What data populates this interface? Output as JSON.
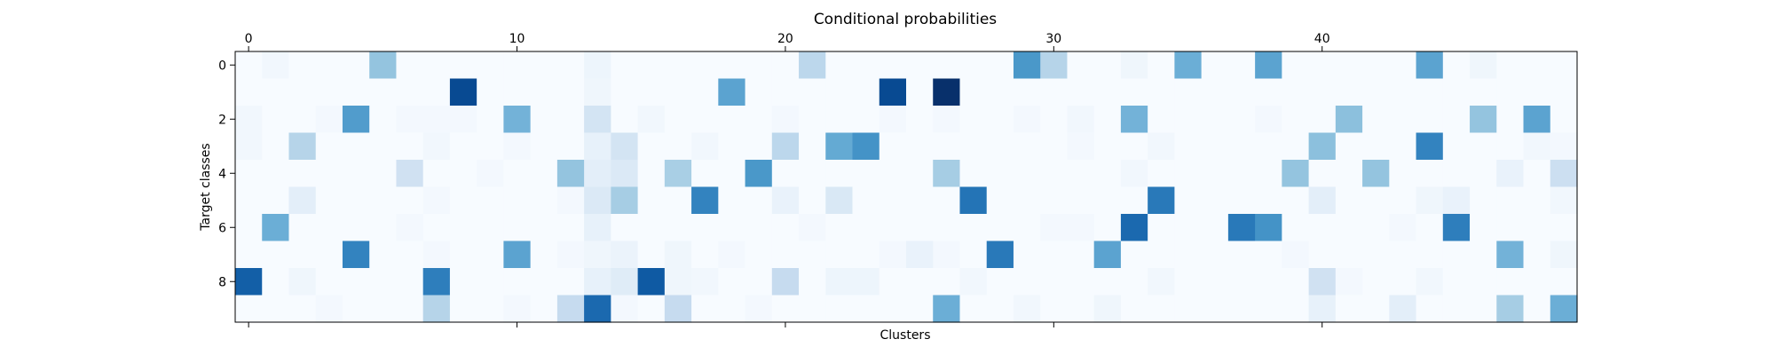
{
  "chart_data": {
    "type": "heatmap",
    "title": "Conditional probabilities",
    "xlabel": "Clusters",
    "ylabel": "Target classes",
    "colormap": "Blues",
    "low_color": "#f7fbff",
    "high_color": "#08306b",
    "x_tick_position": "top",
    "n_clusters": 50,
    "n_classes": 10,
    "x_ticks": [
      0,
      10,
      20,
      30,
      40
    ],
    "y_ticks": [
      0,
      2,
      4,
      6,
      8
    ],
    "value_range": [
      0,
      1
    ],
    "grid": false,
    "matrix": [
      [
        0.0,
        0.03,
        0.0,
        0.0,
        0.0,
        0.4,
        0.0,
        0.0,
        0.0,
        0.0,
        0.0,
        0.0,
        0.0,
        0.05,
        0.0,
        0.0,
        0.0,
        0.0,
        0.0,
        0.0,
        0.0,
        0.28,
        0.0,
        0.0,
        0.0,
        0.0,
        0.0,
        0.0,
        0.0,
        0.6,
        0.3,
        0.0,
        0.0,
        0.04,
        0.0,
        0.5,
        0.0,
        0.0,
        0.55,
        0.0,
        0.0,
        0.0,
        0.0,
        0.0,
        0.55,
        0.0,
        0.04,
        0.0,
        0.0,
        0.0
      ],
      [
        0.0,
        0.0,
        0.0,
        0.0,
        0.0,
        0.0,
        0.0,
        0.0,
        0.9,
        0.0,
        0.0,
        0.0,
        0.0,
        0.04,
        0.0,
        0.0,
        0.0,
        0.0,
        0.55,
        0.0,
        0.0,
        0.0,
        0.0,
        0.0,
        0.9,
        0.0,
        1.0,
        0.0,
        0.0,
        0.0,
        0.0,
        0.0,
        0.0,
        0.0,
        0.0,
        0.0,
        0.0,
        0.0,
        0.0,
        0.0,
        0.0,
        0.0,
        0.0,
        0.0,
        0.0,
        0.0,
        0.0,
        0.0,
        0.0,
        0.0
      ],
      [
        0.03,
        0.0,
        0.0,
        0.02,
        0.58,
        0.0,
        0.02,
        0.02,
        0.02,
        0.0,
        0.48,
        0.0,
        0.0,
        0.18,
        0.0,
        0.03,
        0.0,
        0.0,
        0.0,
        0.0,
        0.02,
        0.0,
        0.0,
        0.0,
        0.02,
        0.0,
        0.02,
        0.0,
        0.0,
        0.02,
        0.0,
        0.03,
        0.0,
        0.48,
        0.0,
        0.0,
        0.0,
        0.0,
        0.02,
        0.0,
        0.0,
        0.42,
        0.0,
        0.0,
        0.0,
        0.0,
        0.4,
        0.0,
        0.55,
        0.0
      ],
      [
        0.03,
        0.0,
        0.3,
        0.0,
        0.0,
        0.0,
        0.0,
        0.03,
        0.0,
        0.0,
        0.02,
        0.0,
        0.0,
        0.08,
        0.18,
        0.0,
        0.0,
        0.03,
        0.0,
        0.0,
        0.28,
        0.0,
        0.52,
        0.62,
        0.0,
        0.0,
        0.0,
        0.0,
        0.0,
        0.0,
        0.0,
        0.02,
        0.0,
        0.0,
        0.03,
        0.0,
        0.0,
        0.0,
        0.0,
        0.0,
        0.42,
        0.0,
        0.0,
        0.0,
        0.68,
        0.0,
        0.0,
        0.0,
        0.03,
        0.02
      ],
      [
        0.0,
        0.0,
        0.0,
        0.0,
        0.0,
        0.0,
        0.2,
        0.0,
        0.0,
        0.02,
        0.0,
        0.0,
        0.4,
        0.1,
        0.14,
        0.0,
        0.34,
        0.0,
        0.0,
        0.6,
        0.0,
        0.0,
        0.0,
        0.0,
        0.0,
        0.0,
        0.35,
        0.0,
        0.0,
        0.0,
        0.0,
        0.0,
        0.0,
        0.03,
        0.0,
        0.0,
        0.0,
        0.0,
        0.0,
        0.4,
        0.0,
        0.0,
        0.4,
        0.0,
        0.0,
        0.0,
        0.0,
        0.07,
        0.0,
        0.22
      ],
      [
        0.0,
        0.0,
        0.1,
        0.0,
        0.0,
        0.0,
        0.0,
        0.02,
        0.0,
        0.0,
        0.0,
        0.0,
        0.02,
        0.14,
        0.35,
        0.0,
        0.0,
        0.68,
        0.0,
        0.0,
        0.07,
        0.0,
        0.15,
        0.0,
        0.0,
        0.0,
        0.0,
        0.74,
        0.0,
        0.0,
        0.0,
        0.0,
        0.0,
        0.0,
        0.72,
        0.0,
        0.0,
        0.0,
        0.0,
        0.0,
        0.1,
        0.0,
        0.0,
        0.0,
        0.04,
        0.07,
        0.0,
        0.0,
        0.0,
        0.03
      ],
      [
        0.0,
        0.5,
        0.0,
        0.0,
        0.0,
        0.0,
        0.02,
        0.0,
        0.0,
        0.0,
        0.0,
        0.0,
        0.0,
        0.08,
        0.0,
        0.0,
        0.0,
        0.0,
        0.0,
        0.0,
        0.0,
        0.02,
        0.0,
        0.0,
        0.0,
        0.0,
        0.0,
        0.0,
        0.0,
        0.0,
        0.02,
        0.02,
        0.0,
        0.78,
        0.0,
        0.0,
        0.0,
        0.72,
        0.62,
        0.0,
        0.0,
        0.0,
        0.0,
        0.02,
        0.0,
        0.7,
        0.0,
        0.0,
        0.0,
        0.0
      ],
      [
        0.0,
        0.0,
        0.0,
        0.0,
        0.68,
        0.0,
        0.0,
        0.02,
        0.0,
        0.0,
        0.55,
        0.0,
        0.02,
        0.04,
        0.06,
        0.0,
        0.04,
        0.0,
        0.02,
        0.0,
        0.0,
        0.0,
        0.0,
        0.0,
        0.02,
        0.07,
        0.02,
        0.0,
        0.72,
        0.0,
        0.0,
        0.0,
        0.55,
        0.0,
        0.0,
        0.0,
        0.0,
        0.0,
        0.0,
        0.02,
        0.0,
        0.0,
        0.0,
        0.0,
        0.0,
        0.0,
        0.0,
        0.48,
        0.0,
        0.04
      ],
      [
        0.82,
        0.0,
        0.04,
        0.0,
        0.0,
        0.0,
        0.0,
        0.7,
        0.0,
        0.0,
        0.0,
        0.0,
        0.0,
        0.08,
        0.12,
        0.84,
        0.04,
        0.03,
        0.0,
        0.0,
        0.25,
        0.0,
        0.05,
        0.05,
        0.0,
        0.0,
        0.0,
        0.03,
        0.0,
        0.0,
        0.0,
        0.0,
        0.0,
        0.0,
        0.03,
        0.0,
        0.0,
        0.0,
        0.0,
        0.0,
        0.2,
        0.02,
        0.0,
        0.0,
        0.03,
        0.0,
        0.0,
        0.0,
        0.0,
        0.0
      ],
      [
        0.0,
        0.0,
        0.0,
        0.02,
        0.0,
        0.0,
        0.0,
        0.3,
        0.0,
        0.0,
        0.02,
        0.0,
        0.25,
        0.78,
        0.02,
        0.0,
        0.25,
        0.0,
        0.0,
        0.02,
        0.0,
        0.0,
        0.0,
        0.0,
        0.0,
        0.0,
        0.5,
        0.0,
        0.0,
        0.03,
        0.0,
        0.0,
        0.04,
        0.0,
        0.0,
        0.0,
        0.0,
        0.0,
        0.0,
        0.0,
        0.08,
        0.0,
        0.0,
        0.1,
        0.0,
        0.0,
        0.0,
        0.35,
        0.0,
        0.5
      ]
    ]
  }
}
